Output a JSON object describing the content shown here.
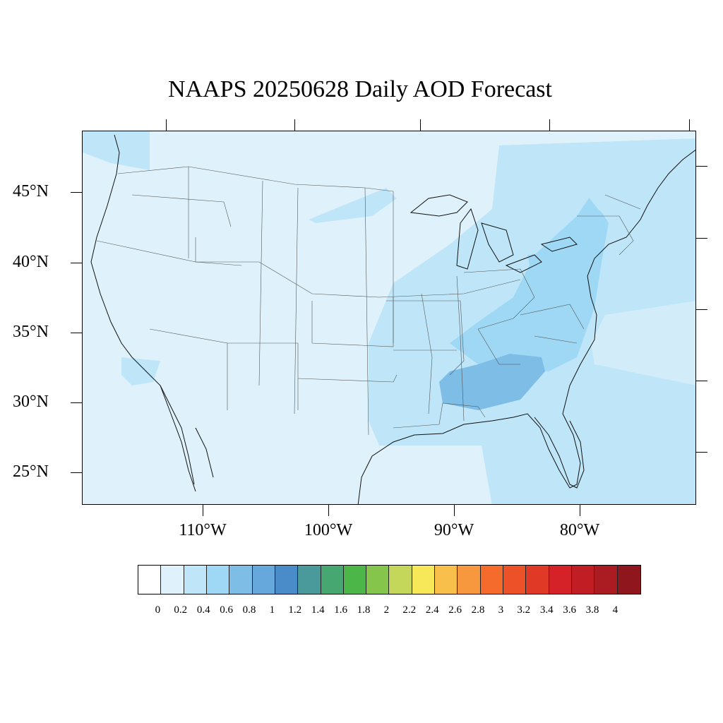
{
  "title": "NAAPS 20250628 Daily AOD Forecast",
  "lat_labels": [
    "45°N",
    "40°N",
    "35°N",
    "30°N",
    "25°N"
  ],
  "lon_labels": [
    "110°W",
    "100°W",
    "90°W",
    "80°W"
  ],
  "colorbar": {
    "labels": [
      "0",
      "0.2",
      "0.4",
      "0.6",
      "0.8",
      "1",
      "1.2",
      "1.4",
      "1.6",
      "1.8",
      "2",
      "2.2",
      "2.4",
      "2.6",
      "2.8",
      "3",
      "3.2",
      "3.4",
      "3.6",
      "3.8",
      "4"
    ],
    "colors": [
      "#ffffff",
      "#dff2fb",
      "#bfe6f8",
      "#9fd8f4",
      "#7dbde6",
      "#66a8dc",
      "#4a8cca",
      "#4a9a9c",
      "#47a770",
      "#4cb648",
      "#86c54c",
      "#c4d75a",
      "#f7e85a",
      "#f8c04a",
      "#f7983f",
      "#f46b2c",
      "#ec5128",
      "#e03a26",
      "#d42228",
      "#c01d24",
      "#aa1b22",
      "#8e161c"
    ]
  },
  "map": {
    "background_color": "#dff2fb",
    "aod_regions": [
      {
        "name": "southeast-high",
        "color": "#7dbde6"
      },
      {
        "name": "southeast-moderate",
        "color": "#9fd8f4"
      },
      {
        "name": "east-light",
        "color": "#bfe6f8"
      }
    ]
  }
}
